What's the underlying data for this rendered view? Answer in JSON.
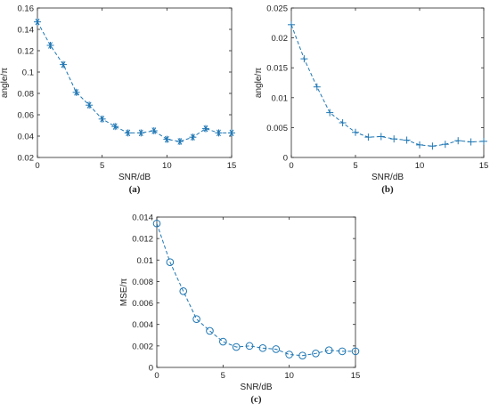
{
  "colors": {
    "series": "#1f77b4",
    "axis": "#262626"
  },
  "chart_data": [
    {
      "type": "line",
      "panel_label": "(a)",
      "xlabel": "SNR/dB",
      "ylabel": "angle/π",
      "marker": "asterisk",
      "line_style": "dashed",
      "xlim": [
        0,
        15
      ],
      "ylim": [
        0.02,
        0.16
      ],
      "xticks": [
        0,
        5,
        10,
        15
      ],
      "yticks": [
        0.02,
        0.04,
        0.06,
        0.08,
        0.1,
        0.12,
        0.14,
        0.16
      ],
      "ytick_labels": [
        "0.02",
        "0.04",
        "0.06",
        "0.08",
        "0.1",
        "0.12",
        "0.14",
        "0.16"
      ],
      "x": [
        0,
        1,
        2,
        3,
        4,
        5,
        6,
        7,
        8,
        9,
        10,
        11,
        12,
        13,
        14,
        15
      ],
      "y": [
        0.147,
        0.125,
        0.107,
        0.081,
        0.069,
        0.056,
        0.049,
        0.043,
        0.043,
        0.045,
        0.037,
        0.035,
        0.039,
        0.047,
        0.043,
        0.043
      ]
    },
    {
      "type": "line",
      "panel_label": "(b)",
      "xlabel": "SNR/dB",
      "ylabel": "angle/π",
      "marker": "plus",
      "line_style": "dashed",
      "xlim": [
        0,
        15
      ],
      "ylim": [
        0,
        0.025
      ],
      "xticks": [
        0,
        5,
        10,
        15
      ],
      "yticks": [
        0,
        0.005,
        0.01,
        0.015,
        0.02,
        0.025
      ],
      "ytick_labels": [
        "0",
        "0.005",
        "0.01",
        "0.015",
        "0.02",
        "0.025"
      ],
      "x": [
        0,
        1,
        2,
        3,
        4,
        5,
        6,
        7,
        8,
        9,
        10,
        11,
        12,
        13,
        14,
        15
      ],
      "y": [
        0.0222,
        0.0165,
        0.0118,
        0.0075,
        0.0058,
        0.0042,
        0.0034,
        0.0035,
        0.0031,
        0.0029,
        0.0021,
        0.0019,
        0.0022,
        0.0028,
        0.0026,
        0.0027
      ]
    },
    {
      "type": "line",
      "panel_label": "(c)",
      "xlabel": "SNR/dB",
      "ylabel": "MSE/π",
      "marker": "circle",
      "line_style": "dashed",
      "xlim": [
        0,
        15
      ],
      "ylim": [
        0,
        0.014
      ],
      "xticks": [
        0,
        5,
        10,
        15
      ],
      "yticks": [
        0,
        0.002,
        0.004,
        0.006,
        0.008,
        0.01,
        0.012,
        0.014
      ],
      "ytick_labels": [
        "0",
        "0.002",
        "0.004",
        "0.006",
        "0.008",
        "0.01",
        "0.012",
        "0.014"
      ],
      "x": [
        0,
        1,
        2,
        3,
        4,
        5,
        6,
        7,
        8,
        9,
        10,
        11,
        12,
        13,
        14,
        15
      ],
      "y": [
        0.0134,
        0.0098,
        0.0071,
        0.0045,
        0.0034,
        0.0024,
        0.0019,
        0.002,
        0.0018,
        0.0017,
        0.0012,
        0.0011,
        0.0013,
        0.0016,
        0.0015,
        0.0015
      ]
    }
  ]
}
